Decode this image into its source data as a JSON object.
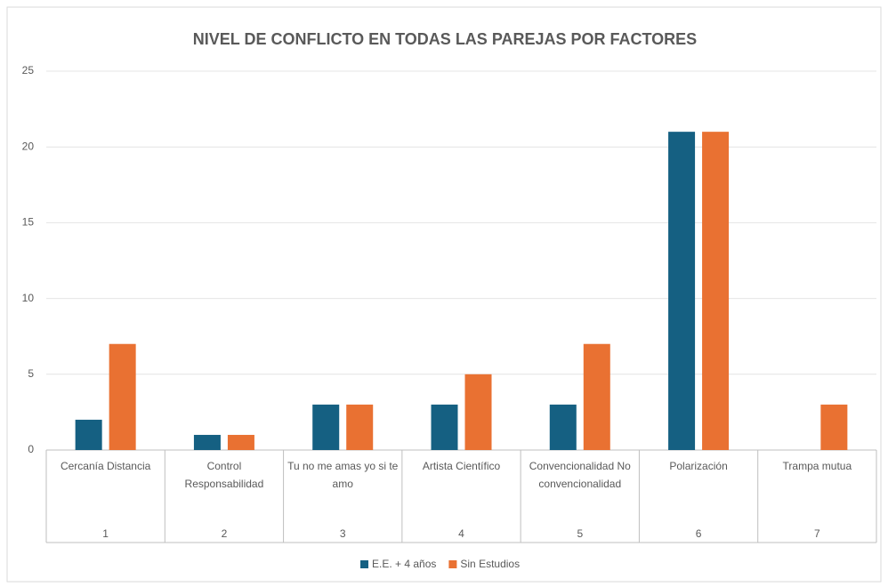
{
  "chart_data": {
    "type": "bar",
    "title": "NIVEL DE CONFLICTO EN TODAS LAS PAREJAS POR FACTORES",
    "categories": [
      "Cercanía Distancia",
      "Control Responsabilidad",
      "Tu no me amas yo si te amo",
      "Artista Científico",
      "Convencionalidad No convencionalidad",
      "Polarización",
      "Trampa mutua"
    ],
    "category_groups": [
      "1",
      "2",
      "3",
      "4",
      "5",
      "6",
      "7"
    ],
    "series": [
      {
        "name": "E.E. + 4 años",
        "color": "#156082",
        "values": [
          2,
          1,
          3,
          3,
          3,
          21,
          0
        ]
      },
      {
        "name": "Sin Estudios",
        "color": "#e97132",
        "values": [
          7,
          1,
          3,
          5,
          7,
          21,
          3
        ]
      }
    ],
    "ylim": [
      0,
      25
    ],
    "yticks": [
      0,
      5,
      10,
      15,
      20,
      25
    ],
    "grid": true,
    "legend": "bottom"
  }
}
